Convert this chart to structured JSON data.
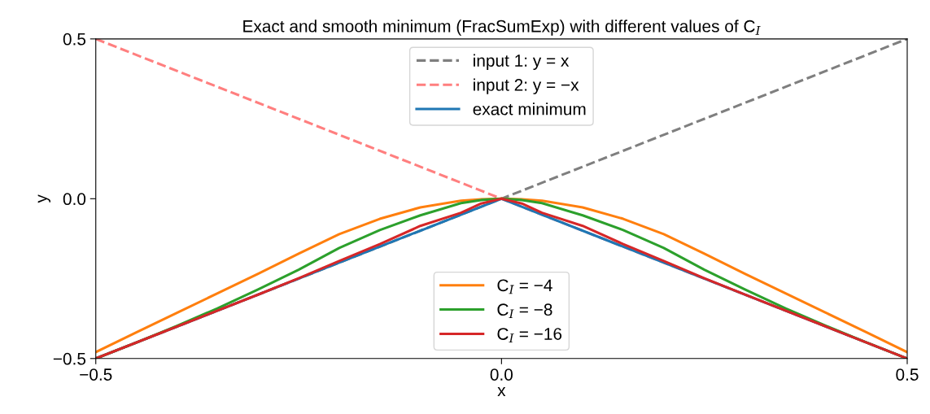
{
  "chart_data": {
    "type": "line",
    "title": "Exact and smooth minimum (FracSumExp) with different values of C$_{I}$",
    "xlabel": "x",
    "ylabel": "y",
    "xlim": [
      -0.5,
      0.5
    ],
    "ylim": [
      -0.5,
      0.5
    ],
    "xticks": [
      {
        "value": -0.5,
        "label": "−0.5"
      },
      {
        "value": 0.0,
        "label": "0.0"
      },
      {
        "value": 0.5,
        "label": "0.5"
      }
    ],
    "yticks": [
      {
        "value": -0.5,
        "label": "−0.5"
      },
      {
        "value": 0.0,
        "label": "0.0"
      },
      {
        "value": 0.5,
        "label": "0.5"
      }
    ],
    "grid": false,
    "legend": [
      "top",
      "bottom"
    ],
    "marker": "none",
    "series": [
      {
        "name": "input 1: y = x",
        "color": "#7f7f7f",
        "line_style": "dashed",
        "x": [
          -0.5,
          0.5
        ],
        "values": [
          -0.5,
          0.5
        ]
      },
      {
        "name": "input 2: y = −x",
        "color": "#ff7f7f",
        "line_style": "dashed",
        "x": [
          -0.5,
          0.5
        ],
        "values": [
          0.5,
          -0.5
        ]
      },
      {
        "name": "exact minimum",
        "color": "#1f77b4",
        "line_style": "solid",
        "x": [
          -0.5,
          0.0,
          0.5
        ],
        "values": [
          -0.5,
          0.0,
          -0.5
        ]
      },
      {
        "name": "C$_{I}$ = −4",
        "color": "#ff7f0e",
        "line_style": "solid",
        "x": [
          -0.5,
          -0.45,
          -0.4,
          -0.35,
          -0.3,
          -0.25,
          -0.2,
          -0.15,
          -0.1,
          -0.05,
          -0.025,
          0.0,
          0.025,
          0.05,
          0.1,
          0.15,
          0.2,
          0.25,
          0.3,
          0.35,
          0.4,
          0.45,
          0.5
        ],
        "values": [
          -0.48,
          -0.418,
          -0.357,
          -0.296,
          -0.235,
          -0.172,
          -0.111,
          -0.063,
          -0.027,
          -0.006,
          -0.0015,
          0.0,
          -0.0015,
          -0.006,
          -0.027,
          -0.063,
          -0.111,
          -0.172,
          -0.235,
          -0.296,
          -0.357,
          -0.418,
          -0.48
        ]
      },
      {
        "name": "C$_{I}$ = −8",
        "color": "#2ca02c",
        "line_style": "solid",
        "x": [
          -0.5,
          -0.45,
          -0.4,
          -0.35,
          -0.3,
          -0.25,
          -0.2,
          -0.15,
          -0.1,
          -0.05,
          -0.025,
          0.0,
          0.025,
          0.05,
          0.1,
          0.15,
          0.2,
          0.25,
          0.3,
          0.35,
          0.4,
          0.45,
          0.5
        ],
        "values": [
          -0.5,
          -0.45,
          -0.398,
          -0.343,
          -0.284,
          -0.222,
          -0.154,
          -0.098,
          -0.052,
          -0.014,
          -0.004,
          0.0,
          -0.004,
          -0.014,
          -0.052,
          -0.098,
          -0.154,
          -0.222,
          -0.284,
          -0.343,
          -0.398,
          -0.45,
          -0.5
        ]
      },
      {
        "name": "C$_{I}$ = −16",
        "color": "#d62728",
        "line_style": "solid",
        "x": [
          -0.5,
          -0.4,
          -0.3,
          -0.25,
          -0.2,
          -0.15,
          -0.1,
          -0.05,
          -0.025,
          0.0,
          0.025,
          0.05,
          0.1,
          0.15,
          0.2,
          0.25,
          0.3,
          0.4,
          0.5
        ],
        "values": [
          -0.5,
          -0.4,
          -0.3,
          -0.249,
          -0.195,
          -0.142,
          -0.085,
          -0.044,
          -0.015,
          0.0,
          -0.015,
          -0.044,
          -0.085,
          -0.142,
          -0.195,
          -0.249,
          -0.3,
          -0.4,
          -0.5
        ]
      }
    ]
  }
}
